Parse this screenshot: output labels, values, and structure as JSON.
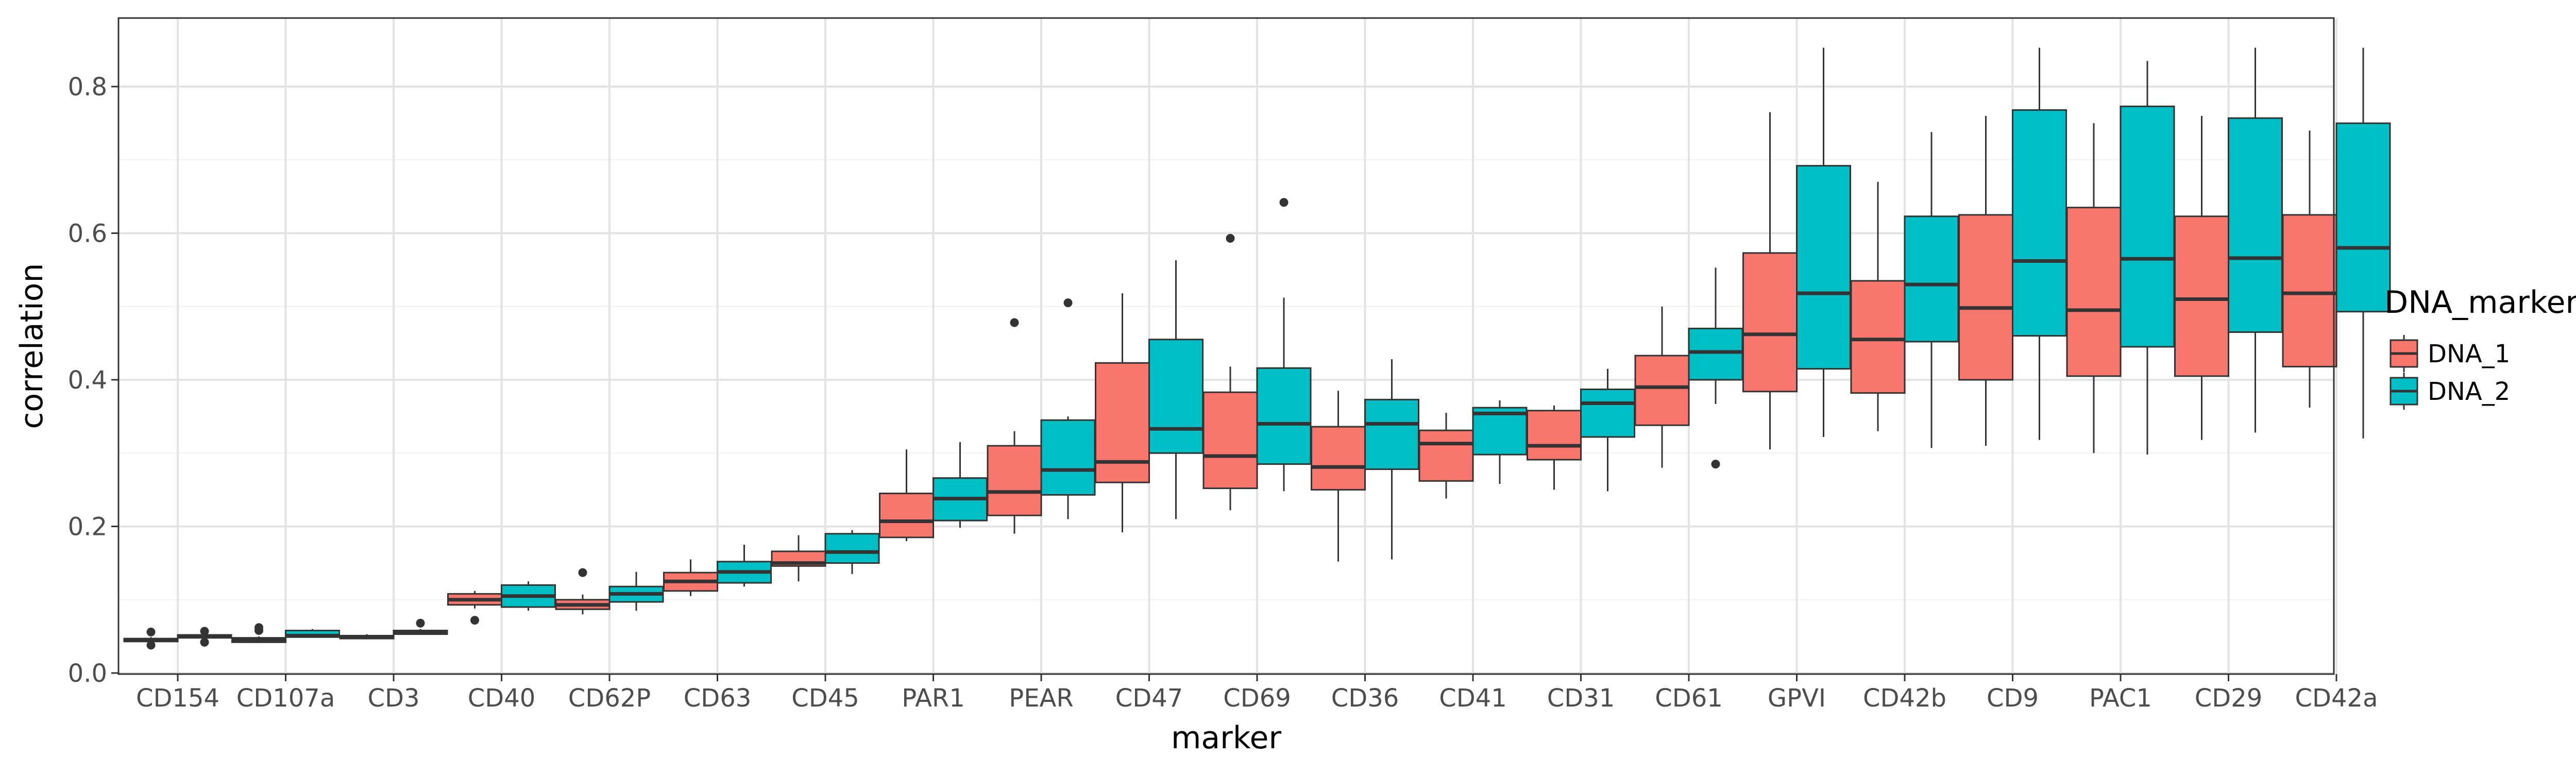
{
  "chart_data": {
    "type": "boxplot",
    "title": "",
    "xlabel": "marker",
    "ylabel": "correlation",
    "ylim": [
      0,
      0.9
    ],
    "yticks": [
      0.0,
      0.2,
      0.4,
      0.6,
      0.8
    ],
    "ytick_labels": [
      "0.0",
      "0.2",
      "0.4",
      "0.6",
      "0.8"
    ],
    "grid": true,
    "legend": {
      "title": "DNA_marker",
      "placement": "right"
    },
    "categories": [
      "CD154",
      "CD107a",
      "CD3",
      "CD40",
      "CD62P",
      "CD63",
      "CD45",
      "PAR1",
      "PEAR",
      "CD47",
      "CD69",
      "CD36",
      "CD41",
      "CD31",
      "CD61",
      "GPVI",
      "CD42b",
      "CD9",
      "PAC1",
      "CD29",
      "CD42a"
    ],
    "series": [
      {
        "name": "DNA_1",
        "color": "#F8766D",
        "boxes": [
          {
            "min": 0.043,
            "q1": 0.043,
            "median": 0.045,
            "q3": 0.047,
            "max": 0.049,
            "outliers": [
              0.038,
              0.056
            ]
          },
          {
            "min": 0.041,
            "q1": 0.042,
            "median": 0.045,
            "q3": 0.048,
            "max": 0.05,
            "outliers": [
              0.058,
              0.062
            ]
          },
          {
            "min": 0.046,
            "q1": 0.047,
            "median": 0.049,
            "q3": 0.051,
            "max": 0.053,
            "outliers": []
          },
          {
            "min": 0.088,
            "q1": 0.093,
            "median": 0.1,
            "q3": 0.108,
            "max": 0.112,
            "outliers": [
              0.072
            ]
          },
          {
            "min": 0.08,
            "q1": 0.087,
            "median": 0.093,
            "q3": 0.1,
            "max": 0.107,
            "outliers": [
              0.137
            ]
          },
          {
            "min": 0.105,
            "q1": 0.112,
            "median": 0.125,
            "q3": 0.137,
            "max": 0.155,
            "outliers": []
          },
          {
            "min": 0.125,
            "q1": 0.146,
            "median": 0.15,
            "q3": 0.166,
            "max": 0.188,
            "outliers": []
          },
          {
            "min": 0.18,
            "q1": 0.185,
            "median": 0.207,
            "q3": 0.245,
            "max": 0.305,
            "outliers": []
          },
          {
            "min": 0.19,
            "q1": 0.215,
            "median": 0.247,
            "q3": 0.31,
            "max": 0.33,
            "outliers": [
              0.478
            ]
          },
          {
            "min": 0.192,
            "q1": 0.26,
            "median": 0.288,
            "q3": 0.423,
            "max": 0.518,
            "outliers": []
          },
          {
            "min": 0.222,
            "q1": 0.252,
            "median": 0.296,
            "q3": 0.383,
            "max": 0.418,
            "outliers": [
              0.593
            ]
          },
          {
            "min": 0.152,
            "q1": 0.25,
            "median": 0.281,
            "q3": 0.336,
            "max": 0.385,
            "outliers": []
          },
          {
            "min": 0.238,
            "q1": 0.262,
            "median": 0.313,
            "q3": 0.331,
            "max": 0.355,
            "outliers": []
          },
          {
            "min": 0.25,
            "q1": 0.291,
            "median": 0.31,
            "q3": 0.358,
            "max": 0.365,
            "outliers": []
          },
          {
            "min": 0.28,
            "q1": 0.338,
            "median": 0.39,
            "q3": 0.433,
            "max": 0.5,
            "outliers": []
          },
          {
            "min": 0.305,
            "q1": 0.384,
            "median": 0.462,
            "q3": 0.573,
            "max": 0.765,
            "outliers": []
          },
          {
            "min": 0.33,
            "q1": 0.382,
            "median": 0.455,
            "q3": 0.535,
            "max": 0.67,
            "outliers": []
          },
          {
            "min": 0.31,
            "q1": 0.4,
            "median": 0.498,
            "q3": 0.625,
            "max": 0.76,
            "outliers": []
          },
          {
            "min": 0.3,
            "q1": 0.405,
            "median": 0.495,
            "q3": 0.635,
            "max": 0.75,
            "outliers": []
          },
          {
            "min": 0.318,
            "q1": 0.405,
            "median": 0.51,
            "q3": 0.623,
            "max": 0.76,
            "outliers": []
          },
          {
            "min": 0.362,
            "q1": 0.418,
            "median": 0.518,
            "q3": 0.625,
            "max": 0.74,
            "outliers": []
          }
        ]
      },
      {
        "name": "DNA_2",
        "color": "#00BFC4",
        "boxes": [
          {
            "min": 0.046,
            "q1": 0.048,
            "median": 0.05,
            "q3": 0.052,
            "max": 0.053,
            "outliers": [
              0.042,
              0.057
            ]
          },
          {
            "min": 0.048,
            "q1": 0.049,
            "median": 0.051,
            "q3": 0.058,
            "max": 0.06,
            "outliers": []
          },
          {
            "min": 0.052,
            "q1": 0.053,
            "median": 0.055,
            "q3": 0.058,
            "max": 0.06,
            "outliers": [
              0.068
            ]
          },
          {
            "min": 0.085,
            "q1": 0.09,
            "median": 0.105,
            "q3": 0.12,
            "max": 0.125,
            "outliers": []
          },
          {
            "min": 0.085,
            "q1": 0.097,
            "median": 0.108,
            "q3": 0.118,
            "max": 0.138,
            "outliers": []
          },
          {
            "min": 0.118,
            "q1": 0.123,
            "median": 0.138,
            "q3": 0.152,
            "max": 0.175,
            "outliers": []
          },
          {
            "min": 0.135,
            "q1": 0.15,
            "median": 0.165,
            "q3": 0.19,
            "max": 0.195,
            "outliers": []
          },
          {
            "min": 0.198,
            "q1": 0.208,
            "median": 0.238,
            "q3": 0.266,
            "max": 0.315,
            "outliers": []
          },
          {
            "min": 0.21,
            "q1": 0.243,
            "median": 0.277,
            "q3": 0.345,
            "max": 0.35,
            "outliers": [
              0.505
            ]
          },
          {
            "min": 0.21,
            "q1": 0.3,
            "median": 0.333,
            "q3": 0.455,
            "max": 0.563,
            "outliers": []
          },
          {
            "min": 0.248,
            "q1": 0.285,
            "median": 0.34,
            "q3": 0.416,
            "max": 0.512,
            "outliers": [
              0.642
            ]
          },
          {
            "min": 0.155,
            "q1": 0.278,
            "median": 0.34,
            "q3": 0.373,
            "max": 0.428,
            "outliers": []
          },
          {
            "min": 0.258,
            "q1": 0.298,
            "median": 0.354,
            "q3": 0.362,
            "max": 0.372,
            "outliers": []
          },
          {
            "min": 0.248,
            "q1": 0.322,
            "median": 0.368,
            "q3": 0.387,
            "max": 0.415,
            "outliers": []
          },
          {
            "min": 0.367,
            "q1": 0.4,
            "median": 0.438,
            "q3": 0.47,
            "max": 0.553,
            "outliers": [
              0.285
            ]
          },
          {
            "min": 0.322,
            "q1": 0.415,
            "median": 0.518,
            "q3": 0.692,
            "max": 0.853,
            "outliers": []
          },
          {
            "min": 0.307,
            "q1": 0.452,
            "median": 0.53,
            "q3": 0.623,
            "max": 0.738,
            "outliers": []
          },
          {
            "min": 0.318,
            "q1": 0.46,
            "median": 0.562,
            "q3": 0.768,
            "max": 0.853,
            "outliers": []
          },
          {
            "min": 0.298,
            "q1": 0.445,
            "median": 0.565,
            "q3": 0.773,
            "max": 0.835,
            "outliers": []
          },
          {
            "min": 0.328,
            "q1": 0.465,
            "median": 0.566,
            "q3": 0.757,
            "max": 0.853,
            "outliers": []
          },
          {
            "min": 0.32,
            "q1": 0.493,
            "median": 0.58,
            "q3": 0.75,
            "max": 0.853,
            "outliers": []
          }
        ]
      }
    ]
  }
}
